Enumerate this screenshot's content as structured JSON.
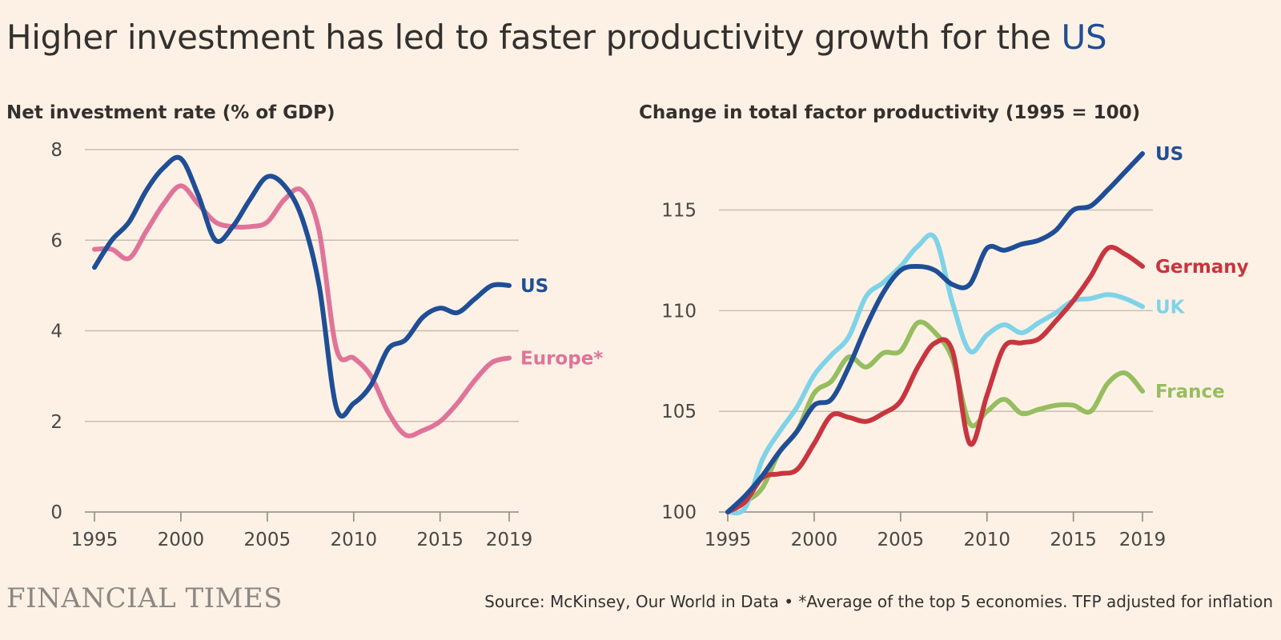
{
  "title": {
    "text": "Higher investment has led to faster productivity growth for the ",
    "highlight": "US",
    "highlight_color": "#1f4e96"
  },
  "colors": {
    "us": "#1f4e96",
    "europe": "#e07399",
    "germany": "#c8353f",
    "uk": "#7fd3e8",
    "france": "#96bd5f",
    "background": "#fdf1e5"
  },
  "chart_data": [
    {
      "type": "line",
      "title": "Net investment rate (% of GDP)",
      "x_ticks": [
        1995,
        2000,
        2005,
        2010,
        2015,
        2019
      ],
      "y_ticks": [
        0,
        2,
        4,
        6,
        8
      ],
      "xlim": [
        1995,
        2019
      ],
      "ylim": [
        0,
        8
      ],
      "grid": true,
      "series": [
        {
          "name": "US",
          "color": "#1f4e96",
          "x": [
            1995,
            1996,
            1997,
            1998,
            1999,
            2000,
            2001,
            2002,
            2003,
            2004,
            2005,
            2006,
            2007,
            2008,
            2009,
            2010,
            2011,
            2012,
            2013,
            2014,
            2015,
            2016,
            2017,
            2018,
            2019
          ],
          "values": [
            5.4,
            6.0,
            6.4,
            7.1,
            7.6,
            7.8,
            7.0,
            6.0,
            6.3,
            6.9,
            7.4,
            7.2,
            6.5,
            5.0,
            2.3,
            2.4,
            2.8,
            3.6,
            3.8,
            4.3,
            4.5,
            4.4,
            4.7,
            5.0,
            5.0
          ]
        },
        {
          "name": "Europe*",
          "color": "#e07399",
          "x": [
            1995,
            1996,
            1997,
            1998,
            1999,
            2000,
            2001,
            2002,
            2003,
            2004,
            2005,
            2006,
            2007,
            2008,
            2009,
            2010,
            2011,
            2012,
            2013,
            2014,
            2015,
            2016,
            2017,
            2018,
            2019
          ],
          "values": [
            5.8,
            5.8,
            5.6,
            6.2,
            6.8,
            7.2,
            6.8,
            6.4,
            6.3,
            6.3,
            6.4,
            6.9,
            7.1,
            6.2,
            3.6,
            3.4,
            3.0,
            2.2,
            1.7,
            1.8,
            2.0,
            2.4,
            2.9,
            3.3,
            3.4
          ]
        }
      ]
    },
    {
      "type": "line",
      "title": "Change in total factor productivity (1995 = 100)",
      "x_ticks": [
        1995,
        2000,
        2005,
        2010,
        2015,
        2019
      ],
      "y_ticks": [
        100,
        105,
        110,
        115
      ],
      "xlim": [
        1995,
        2019
      ],
      "ylim": [
        100,
        118
      ],
      "grid": true,
      "series": [
        {
          "name": "US",
          "color": "#1f4e96",
          "x": [
            1995,
            1996,
            1997,
            1998,
            1999,
            2000,
            2001,
            2002,
            2003,
            2004,
            2005,
            2006,
            2007,
            2008,
            2009,
            2010,
            2011,
            2012,
            2013,
            2014,
            2015,
            2016,
            2017,
            2018,
            2019
          ],
          "values": [
            100.0,
            100.8,
            101.8,
            103.0,
            104.0,
            105.3,
            105.6,
            107.2,
            109.2,
            110.9,
            112.0,
            112.2,
            112.0,
            111.3,
            111.3,
            113.1,
            113.0,
            113.3,
            113.5,
            114.0,
            115.0,
            115.2,
            116.0,
            116.9,
            117.8
          ]
        },
        {
          "name": "Germany",
          "color": "#c8353f",
          "x": [
            1995,
            1996,
            1997,
            1998,
            1999,
            2000,
            2001,
            2002,
            2003,
            2004,
            2005,
            2006,
            2007,
            2008,
            2009,
            2010,
            2011,
            2012,
            2013,
            2014,
            2015,
            2016,
            2017,
            2018,
            2019
          ],
          "values": [
            100.0,
            100.5,
            101.7,
            101.9,
            102.1,
            103.4,
            104.8,
            104.7,
            104.5,
            104.9,
            105.5,
            107.2,
            108.4,
            108.0,
            103.4,
            105.8,
            108.2,
            108.4,
            108.6,
            109.5,
            110.5,
            111.7,
            113.1,
            112.8,
            112.2
          ]
        },
        {
          "name": "UK",
          "color": "#7fd3e8",
          "x": [
            1995,
            1996,
            1997,
            1998,
            1999,
            2000,
            2001,
            2002,
            2003,
            2004,
            2005,
            2006,
            2007,
            2008,
            2009,
            2010,
            2011,
            2012,
            2013,
            2014,
            2015,
            2016,
            2017,
            2018,
            2019
          ],
          "values": [
            100.0,
            100.2,
            102.6,
            104.0,
            105.2,
            106.8,
            107.8,
            108.7,
            110.7,
            111.4,
            112.2,
            113.2,
            113.6,
            110.4,
            108.0,
            108.8,
            109.3,
            108.9,
            109.4,
            109.9,
            110.5,
            110.6,
            110.8,
            110.6,
            110.2
          ]
        },
        {
          "name": "France",
          "color": "#96bd5f",
          "x": [
            1995,
            1996,
            1997,
            1998,
            1999,
            2000,
            2001,
            2002,
            2003,
            2004,
            2005,
            2006,
            2007,
            2008,
            2009,
            2010,
            2011,
            2012,
            2013,
            2014,
            2015,
            2016,
            2017,
            2018,
            2019
          ],
          "values": [
            100.0,
            100.5,
            101.2,
            103.0,
            104.0,
            105.9,
            106.5,
            107.7,
            107.2,
            107.9,
            108.0,
            109.4,
            108.9,
            107.6,
            104.4,
            105.0,
            105.6,
            104.9,
            105.1,
            105.3,
            105.3,
            105.0,
            106.4,
            106.9,
            106.0
          ]
        }
      ]
    }
  ],
  "footer": {
    "logo": "FINANCIAL TIMES",
    "source": "Source: McKinsey, Our World in Data • *Average of the top 5 economies. TFP adjusted for inflation"
  }
}
